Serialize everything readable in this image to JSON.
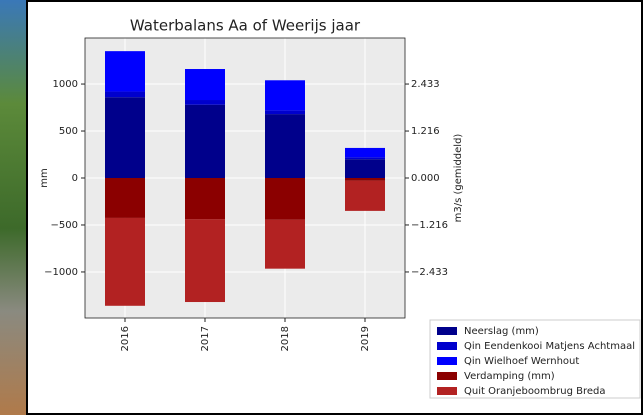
{
  "chart_data": {
    "type": "stacked-bar",
    "title": "Waterbalans Aa of Weerijs jaar",
    "ylabel": "mm",
    "y2label": "m3/s (gemiddeld)",
    "categories": [
      "2016",
      "2017",
      "2018",
      "2019"
    ],
    "series": [
      {
        "name": "Neerslag (mm)",
        "color": "#00008b",
        "values": [
          860,
          780,
          680,
          200
        ]
      },
      {
        "name": "Qin Eendenkooi Matjens Achtmaal",
        "color": "#0000cd",
        "values": [
          60,
          50,
          40,
          20
        ]
      },
      {
        "name": "Qin Wielhoef Wernhout",
        "color": "#0000ff",
        "values": [
          430,
          330,
          320,
          100
        ]
      },
      {
        "name": "Verdamping (mm)",
        "color": "#8b0000",
        "values": [
          -425,
          -440,
          -445,
          -30
        ]
      },
      {
        "name": "Quit Oranjeboombrug Breda",
        "color": "#b22222",
        "values": [
          -935,
          -880,
          -520,
          -320
        ]
      }
    ],
    "ylim": [
      -1490,
      1490
    ],
    "yticks": [
      {
        "value": -1000,
        "label": "−1000"
      },
      {
        "value": -500,
        "label": "−500"
      },
      0,
      500,
      1000
    ],
    "y2lim": [
      -3.625,
      3.625
    ],
    "y2ticks": [
      {
        "value": -2.433,
        "label": "−2.433"
      },
      {
        "value": -1.216,
        "label": "−1.216"
      },
      {
        "value": 0,
        "label": "0.000"
      },
      {
        "value": 1.216,
        "label": "1.216"
      },
      {
        "value": 2.433,
        "label": "2.433"
      }
    ],
    "grid": true,
    "legend": "lower right"
  }
}
